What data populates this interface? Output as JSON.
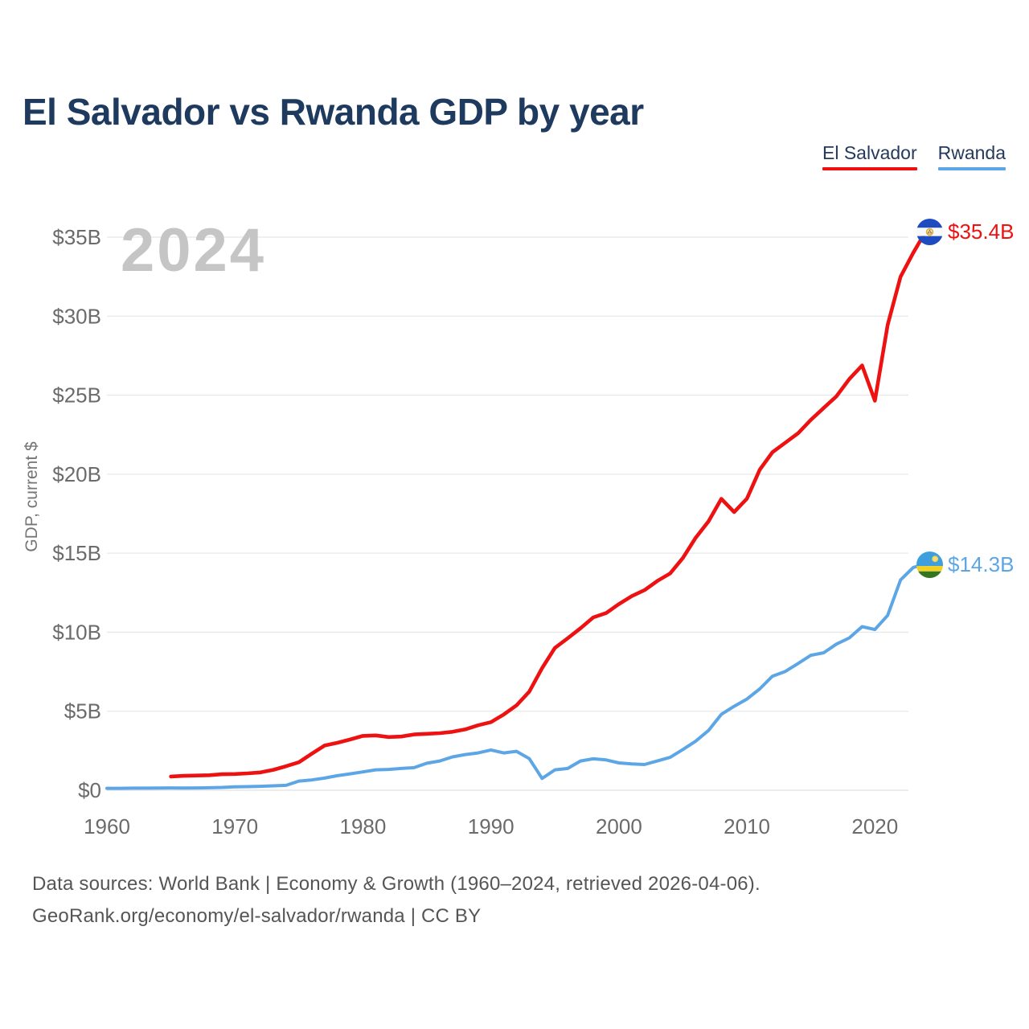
{
  "page": {
    "title": "El Salvador vs Rwanda GDP by year",
    "watermark_year": "2024",
    "footer_line1": "Data sources: World Bank | Economy & Growth (1960–2024, retrieved 2026-04-06).",
    "footer_line2": "GeoRank.org/economy/el-salvador/rwanda | CC BY"
  },
  "legend": {
    "items": [
      {
        "label": "El Salvador",
        "color": "#ee1111"
      },
      {
        "label": "Rwanda",
        "color": "#5da6e5"
      }
    ]
  },
  "colors": {
    "title_text": "#1e3a5e",
    "el_salvador_line": "#ee1111",
    "rwanda_line": "#5da6e5",
    "gridline": "#e8e8e8",
    "zero_gridline": "#e0e0e0",
    "tick_label": "#6b6b6b",
    "axis_title": "#757575",
    "watermark": "#c5c5c5",
    "footer_text": "#555555"
  },
  "chart_data": {
    "type": "line",
    "title": "El Salvador vs Rwanda GDP by year",
    "xlabel": "",
    "ylabel": "GDP, current $",
    "y_unit": "billions of current US$",
    "xlim": [
      1960,
      2024
    ],
    "ylim": [
      0,
      35
    ],
    "x_ticks": [
      1960,
      1970,
      1980,
      1990,
      2000,
      2010,
      2020
    ],
    "y_ticks": [
      {
        "value": 0,
        "label": "$0"
      },
      {
        "value": 5,
        "label": "$5B"
      },
      {
        "value": 10,
        "label": "$10B"
      },
      {
        "value": 15,
        "label": "$15B"
      },
      {
        "value": 20,
        "label": "$20B"
      },
      {
        "value": 25,
        "label": "$25B"
      },
      {
        "value": 30,
        "label": "$30B"
      },
      {
        "value": 35,
        "label": "$35B"
      }
    ],
    "grid": "horizontal",
    "legend_position": "top-right",
    "series": [
      {
        "name": "El Salvador",
        "color": "#ee1111",
        "end_label": "$35.4B",
        "end_value_billion": 35.4,
        "flag_icon": "el-salvador-flag-icon",
        "years": [
          1965,
          1966,
          1967,
          1968,
          1969,
          1970,
          1971,
          1972,
          1973,
          1974,
          1975,
          1976,
          1977,
          1978,
          1979,
          1980,
          1981,
          1982,
          1983,
          1984,
          1985,
          1986,
          1987,
          1988,
          1989,
          1990,
          1991,
          1992,
          1993,
          1994,
          1995,
          1996,
          1997,
          1998,
          1999,
          2000,
          2001,
          2002,
          2003,
          2004,
          2005,
          2006,
          2007,
          2008,
          2009,
          2010,
          2011,
          2012,
          2013,
          2014,
          2015,
          2016,
          2017,
          2018,
          2019,
          2020,
          2021,
          2022,
          2023,
          2024
        ],
        "values": [
          0.87,
          0.91,
          0.93,
          0.95,
          1.01,
          1.03,
          1.07,
          1.13,
          1.29,
          1.52,
          1.77,
          2.31,
          2.83,
          3.0,
          3.21,
          3.44,
          3.47,
          3.37,
          3.4,
          3.53,
          3.57,
          3.61,
          3.7,
          3.85,
          4.11,
          4.31,
          4.79,
          5.37,
          6.24,
          7.73,
          9.01,
          9.62,
          10.25,
          10.94,
          11.21,
          11.78,
          12.28,
          12.66,
          13.24,
          13.72,
          14.7,
          15.98,
          17.01,
          18.44,
          17.6,
          18.45,
          20.28,
          21.39,
          21.99,
          22.59,
          23.44,
          24.19,
          24.93,
          26.02,
          26.88,
          24.65,
          29.45,
          32.49,
          34.02,
          35.4
        ]
      },
      {
        "name": "Rwanda",
        "color": "#5da6e5",
        "end_label": "$14.3B",
        "end_value_billion": 14.3,
        "flag_icon": "rwanda-flag-icon",
        "years": [
          1960,
          1961,
          1962,
          1963,
          1964,
          1965,
          1966,
          1967,
          1968,
          1969,
          1970,
          1971,
          1972,
          1973,
          1974,
          1975,
          1976,
          1977,
          1978,
          1979,
          1980,
          1981,
          1982,
          1983,
          1984,
          1985,
          1986,
          1987,
          1988,
          1989,
          1990,
          1991,
          1992,
          1993,
          1994,
          1995,
          1996,
          1997,
          1998,
          1999,
          2000,
          2001,
          2002,
          2003,
          2004,
          2005,
          2006,
          2007,
          2008,
          2009,
          2010,
          2011,
          2012,
          2013,
          2014,
          2015,
          2016,
          2017,
          2018,
          2019,
          2020,
          2021,
          2022,
          2023,
          2024
        ],
        "values": [
          0.12,
          0.12,
          0.13,
          0.13,
          0.14,
          0.15,
          0.14,
          0.15,
          0.16,
          0.18,
          0.22,
          0.23,
          0.25,
          0.28,
          0.31,
          0.58,
          0.65,
          0.77,
          0.92,
          1.04,
          1.16,
          1.29,
          1.32,
          1.38,
          1.43,
          1.71,
          1.85,
          2.11,
          2.26,
          2.36,
          2.55,
          2.36,
          2.46,
          2.0,
          0.75,
          1.29,
          1.38,
          1.85,
          1.99,
          1.92,
          1.73,
          1.67,
          1.63,
          1.85,
          2.08,
          2.58,
          3.11,
          3.78,
          4.8,
          5.31,
          5.77,
          6.41,
          7.22,
          7.52,
          8.02,
          8.54,
          8.7,
          9.25,
          9.64,
          10.35,
          10.17,
          11.07,
          13.31,
          14.1,
          14.3
        ]
      }
    ]
  }
}
